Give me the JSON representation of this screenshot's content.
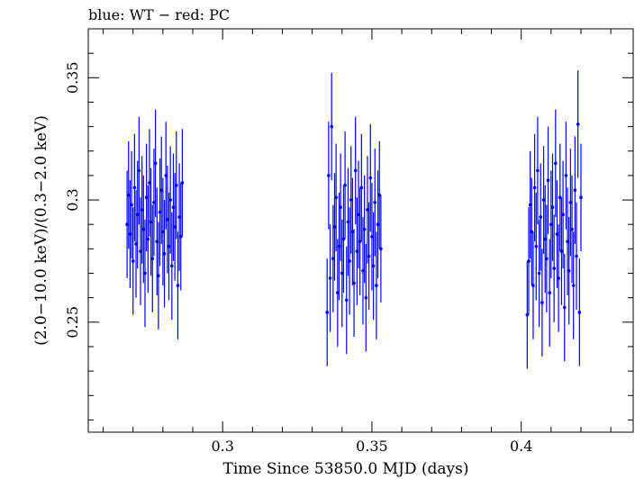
{
  "chart_data": {
    "type": "scatter",
    "title": "blue: WT − red: PC",
    "xlabel": "Time Since 53850.0 MJD (days)",
    "ylabel": "(2.0−10.0 keV)/(0.3−2.0 keV)",
    "xlim": [
      0.255,
      0.4375
    ],
    "ylim": [
      0.205,
      0.37
    ],
    "xticks": [
      0.3,
      0.35,
      0.4
    ],
    "xtick_labels": [
      "0.3",
      "0.35",
      "0.4"
    ],
    "yticks": [
      0.25,
      0.3,
      0.35
    ],
    "ytick_labels": [
      "0.25",
      "0.3",
      "0.35"
    ],
    "grid": false,
    "colors": {
      "WT": "#0000ff",
      "PC": "#ff0000"
    },
    "series": [
      {
        "name": "WT",
        "color": "#0000ff",
        "x": [
          0.268,
          0.2685,
          0.269,
          0.2695,
          0.27,
          0.2705,
          0.271,
          0.2715,
          0.272,
          0.2725,
          0.273,
          0.2735,
          0.274,
          0.2745,
          0.275,
          0.2755,
          0.276,
          0.2765,
          0.277,
          0.2775,
          0.278,
          0.2785,
          0.279,
          0.2795,
          0.28,
          0.2805,
          0.281,
          0.2815,
          0.282,
          0.2825,
          0.283,
          0.2835,
          0.284,
          0.2845,
          0.285,
          0.2855,
          0.286,
          0.2865,
          0.335,
          0.3355,
          0.336,
          0.3365,
          0.337,
          0.3375,
          0.338,
          0.3385,
          0.339,
          0.3395,
          0.34,
          0.3405,
          0.341,
          0.3415,
          0.342,
          0.3425,
          0.343,
          0.3435,
          0.344,
          0.3445,
          0.345,
          0.3455,
          0.346,
          0.3465,
          0.347,
          0.3475,
          0.348,
          0.3485,
          0.349,
          0.3495,
          0.35,
          0.3505,
          0.351,
          0.3515,
          0.352,
          0.3525,
          0.353,
          0.402,
          0.4025,
          0.403,
          0.4035,
          0.404,
          0.4045,
          0.405,
          0.4055,
          0.406,
          0.4065,
          0.407,
          0.4075,
          0.408,
          0.4085,
          0.409,
          0.4095,
          0.41,
          0.4105,
          0.411,
          0.4115,
          0.412,
          0.4125,
          0.413,
          0.4135,
          0.414,
          0.4145,
          0.415,
          0.4155,
          0.416,
          0.4165,
          0.417,
          0.4175,
          0.418,
          0.4185,
          0.419,
          0.4195,
          0.42
        ],
        "y": [
          0.29,
          0.302,
          0.286,
          0.298,
          0.275,
          0.305,
          0.282,
          0.294,
          0.312,
          0.279,
          0.296,
          0.288,
          0.27,
          0.301,
          0.284,
          0.307,
          0.291,
          0.276,
          0.299,
          0.315,
          0.283,
          0.269,
          0.295,
          0.304,
          0.287,
          0.278,
          0.31,
          0.292,
          0.281,
          0.3,
          0.273,
          0.297,
          0.289,
          0.306,
          0.265,
          0.293,
          0.285,
          0.307,
          0.254,
          0.31,
          0.268,
          0.33,
          0.276,
          0.289,
          0.301,
          0.262,
          0.281,
          0.297,
          0.27,
          0.284,
          0.306,
          0.259,
          0.291,
          0.275,
          0.3,
          0.287,
          0.266,
          0.312,
          0.279,
          0.294,
          0.283,
          0.305,
          0.271,
          0.288,
          0.26,
          0.296,
          0.277,
          0.309,
          0.285,
          0.273,
          0.299,
          0.265,
          0.29,
          0.302,
          0.28,
          0.253,
          0.275,
          0.298,
          0.287,
          0.265,
          0.305,
          0.281,
          0.312,
          0.27,
          0.293,
          0.258,
          0.3,
          0.284,
          0.276,
          0.308,
          0.262,
          0.29,
          0.297,
          0.272,
          0.315,
          0.286,
          0.268,
          0.301,
          0.279,
          0.294,
          0.256,
          0.31,
          0.283,
          0.271,
          0.299,
          0.288,
          0.265,
          0.304,
          0.277,
          0.331,
          0.254,
          0.301
        ],
        "yerr": 0.022
      }
    ]
  }
}
